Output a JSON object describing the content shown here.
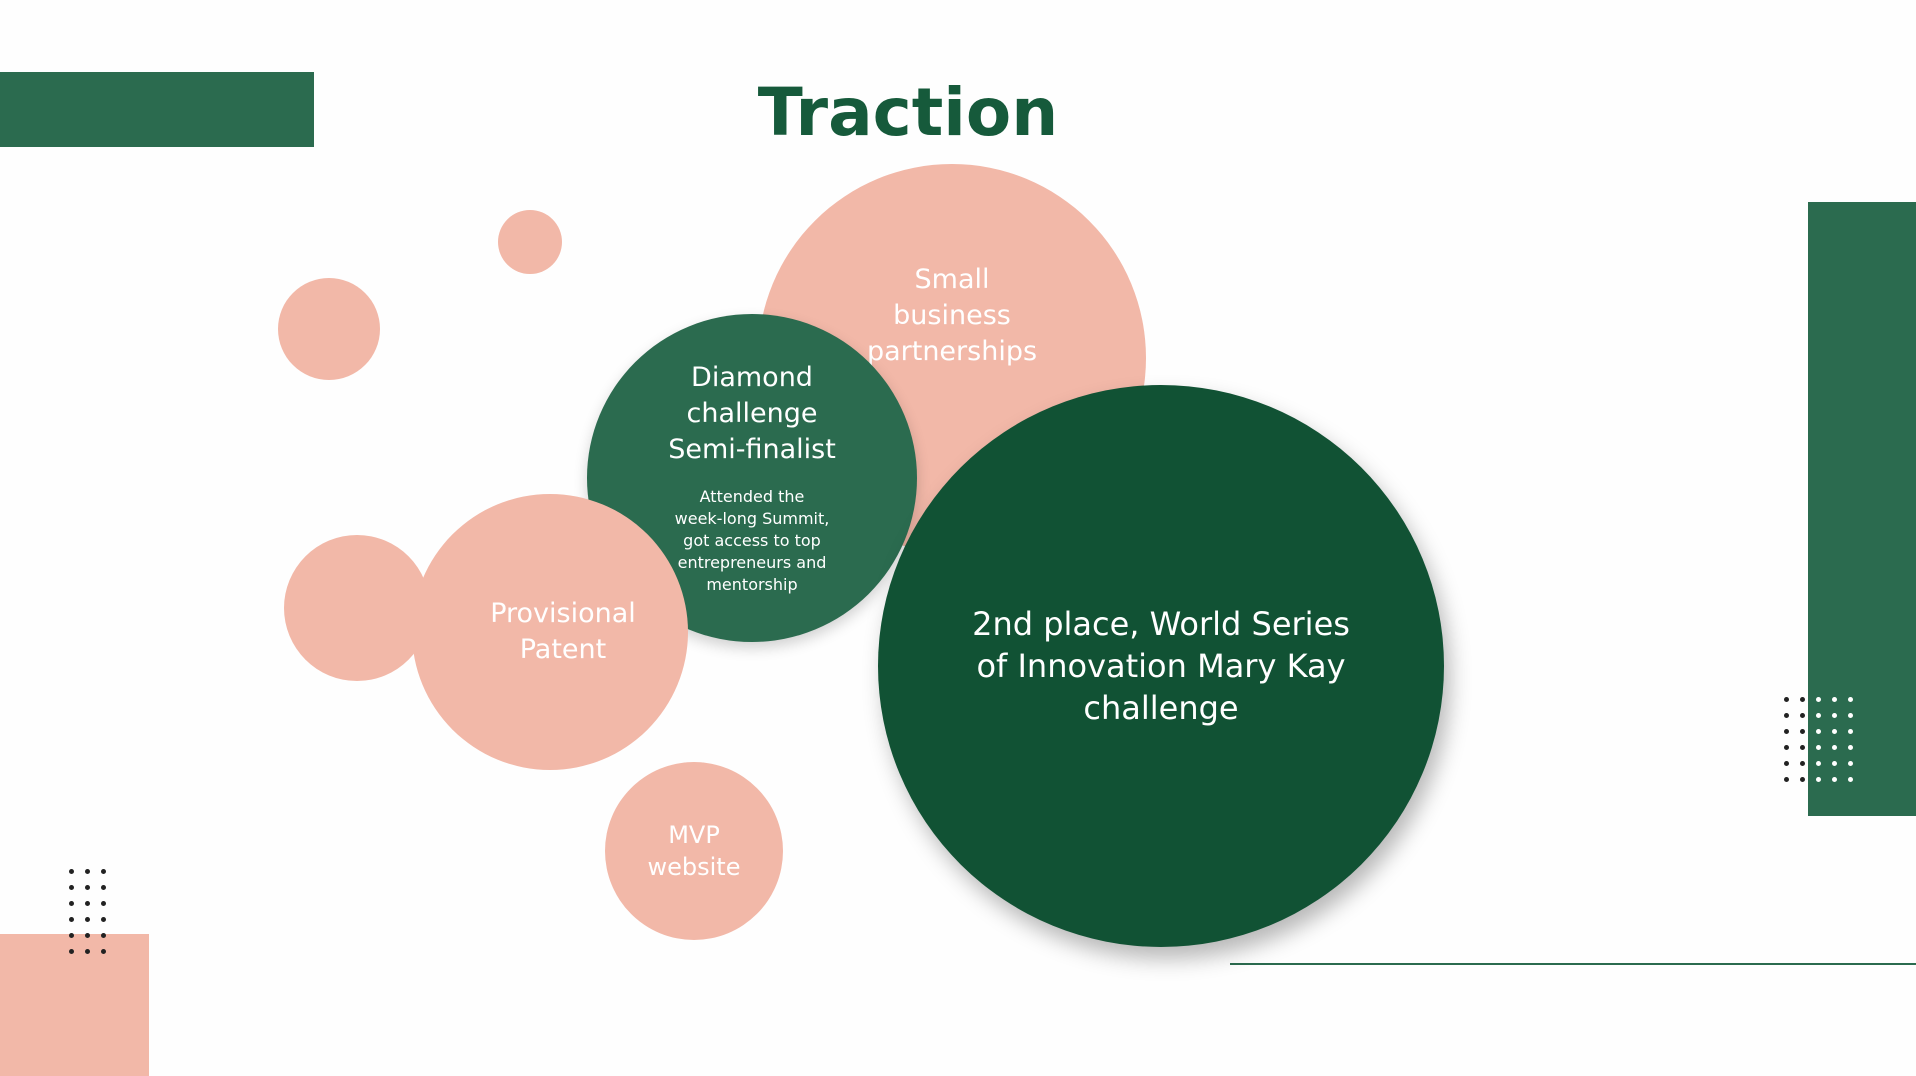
{
  "slide": {
    "title": "Traction"
  },
  "bubbles": {
    "small_business": {
      "text": "Small\nbusiness\npartnerships"
    },
    "diamond": {
      "heading": "Diamond\nchallenge\nSemi-finalist",
      "detail": "Attended the\nweek-long Summit,\ngot access to top\nentrepreneurs and\nmentorship"
    },
    "patent": {
      "text": "Provisional\nPatent"
    },
    "mvp": {
      "text": "MVP\nwebsite"
    },
    "world_series": {
      "text": "2nd place, World Series\nof Innovation Mary Kay\nchallenge"
    }
  },
  "colors": {
    "primary_green": "#2b6b4f",
    "dark_green": "#115234",
    "pink": "#f2b8a8",
    "title_green": "#165a3b"
  }
}
